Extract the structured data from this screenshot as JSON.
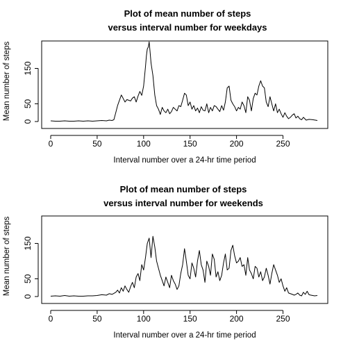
{
  "chart_data": [
    {
      "type": "line",
      "title_line1": "Plot of mean number of steps",
      "title_line2": "versus interval number for weekdays",
      "xlabel": "Interval number over a 24-hr time period",
      "ylabel": "Mean number of steps",
      "xlim": [
        0,
        287
      ],
      "ylim": [
        0,
        230
      ],
      "xticks": [
        0,
        50,
        100,
        150,
        200,
        250
      ],
      "yticks": [
        0,
        50,
        150
      ],
      "series": [
        {
          "name": "weekdays",
          "x": [
            0,
            5,
            10,
            15,
            20,
            25,
            30,
            35,
            40,
            45,
            50,
            55,
            60,
            63,
            66,
            68,
            70,
            72,
            74,
            76,
            78,
            80,
            82,
            84,
            86,
            88,
            90,
            92,
            94,
            96,
            98,
            100,
            102,
            103,
            104,
            105,
            106,
            107,
            108,
            110,
            112,
            114,
            116,
            118,
            120,
            122,
            124,
            126,
            128,
            130,
            132,
            134,
            136,
            138,
            140,
            142,
            144,
            146,
            148,
            150,
            152,
            154,
            156,
            158,
            160,
            162,
            164,
            166,
            168,
            170,
            172,
            174,
            176,
            178,
            180,
            182,
            184,
            186,
            188,
            190,
            192,
            194,
            196,
            198,
            200,
            202,
            204,
            206,
            208,
            210,
            212,
            214,
            216,
            218,
            220,
            222,
            224,
            226,
            228,
            230,
            232,
            234,
            236,
            238,
            240,
            242,
            244,
            246,
            248,
            250,
            252,
            254,
            256,
            258,
            260,
            262,
            264,
            266,
            268,
            270,
            272,
            275,
            278,
            282,
            287
          ],
          "y": [
            2,
            1,
            1,
            2,
            1,
            1,
            2,
            1,
            2,
            1,
            2,
            3,
            2,
            4,
            3,
            5,
            25,
            45,
            60,
            75,
            65,
            55,
            62,
            60,
            58,
            66,
            70,
            55,
            72,
            85,
            74,
            100,
            155,
            185,
            205,
            210,
            225,
            195,
            165,
            130,
            75,
            45,
            35,
            20,
            40,
            30,
            25,
            35,
            22,
            28,
            40,
            35,
            30,
            45,
            42,
            60,
            80,
            75,
            45,
            55,
            35,
            45,
            30,
            38,
            25,
            42,
            32,
            30,
            50,
            25,
            40,
            30,
            45,
            42,
            35,
            28,
            45,
            32,
            55,
            95,
            100,
            60,
            50,
            42,
            30,
            40,
            35,
            55,
            45,
            25,
            70,
            60,
            30,
            65,
            80,
            75,
            100,
            115,
            100,
            95,
            55,
            42,
            70,
            50,
            30,
            50,
            25,
            35,
            22,
            12,
            25,
            15,
            8,
            12,
            18,
            22,
            10,
            15,
            8,
            5,
            12,
            4,
            6,
            5,
            3
          ]
        }
      ]
    },
    {
      "type": "line",
      "title_line1": "Plot of mean number of steps",
      "title_line2": "versus interval number for weekends",
      "xlabel": "Interval number over a 24-hr time period",
      "ylabel": "Mean number of steps",
      "xlim": [
        0,
        287
      ],
      "ylim": [
        0,
        230
      ],
      "xticks": [
        0,
        50,
        100,
        150,
        200,
        250
      ],
      "yticks": [
        0,
        50,
        150
      ],
      "series": [
        {
          "name": "weekends",
          "x": [
            0,
            5,
            10,
            15,
            20,
            25,
            30,
            35,
            40,
            45,
            50,
            55,
            60,
            63,
            66,
            70,
            72,
            74,
            76,
            78,
            80,
            82,
            84,
            86,
            88,
            90,
            92,
            94,
            96,
            98,
            100,
            102,
            104,
            106,
            108,
            110,
            112,
            114,
            116,
            118,
            120,
            122,
            124,
            126,
            128,
            130,
            132,
            134,
            136,
            138,
            140,
            142,
            144,
            146,
            148,
            150,
            152,
            154,
            156,
            158,
            160,
            162,
            164,
            166,
            168,
            170,
            172,
            174,
            176,
            178,
            180,
            182,
            184,
            186,
            188,
            190,
            192,
            194,
            196,
            198,
            200,
            202,
            204,
            206,
            208,
            210,
            212,
            214,
            216,
            218,
            220,
            222,
            224,
            226,
            228,
            230,
            232,
            234,
            236,
            238,
            240,
            242,
            244,
            246,
            248,
            250,
            252,
            254,
            256,
            258,
            260,
            262,
            264,
            266,
            268,
            270,
            272,
            274,
            276,
            278,
            280,
            282,
            284,
            287
          ],
          "y": [
            1,
            2,
            1,
            3,
            1,
            2,
            1,
            1,
            2,
            2,
            3,
            5,
            4,
            8,
            6,
            12,
            18,
            10,
            25,
            15,
            30,
            20,
            12,
            28,
            40,
            25,
            55,
            65,
            45,
            90,
            75,
            110,
            150,
            165,
            110,
            170,
            140,
            100,
            80,
            60,
            45,
            30,
            55,
            40,
            25,
            60,
            45,
            35,
            20,
            30,
            65,
            90,
            135,
            100,
            60,
            50,
            95,
            80,
            55,
            100,
            130,
            90,
            75,
            40,
            100,
            85,
            60,
            120,
            105,
            55,
            70,
            45,
            60,
            95,
            120,
            75,
            80,
            130,
            145,
            115,
            95,
            100,
            110,
            85,
            90,
            60,
            110,
            75,
            65,
            50,
            85,
            80,
            55,
            70,
            45,
            55,
            80,
            60,
            35,
            65,
            90,
            75,
            60,
            40,
            50,
            30,
            15,
            25,
            10,
            8,
            6,
            4,
            6,
            10,
            4,
            2,
            12,
            6,
            15,
            5,
            4,
            3,
            2,
            3
          ]
        }
      ]
    }
  ]
}
